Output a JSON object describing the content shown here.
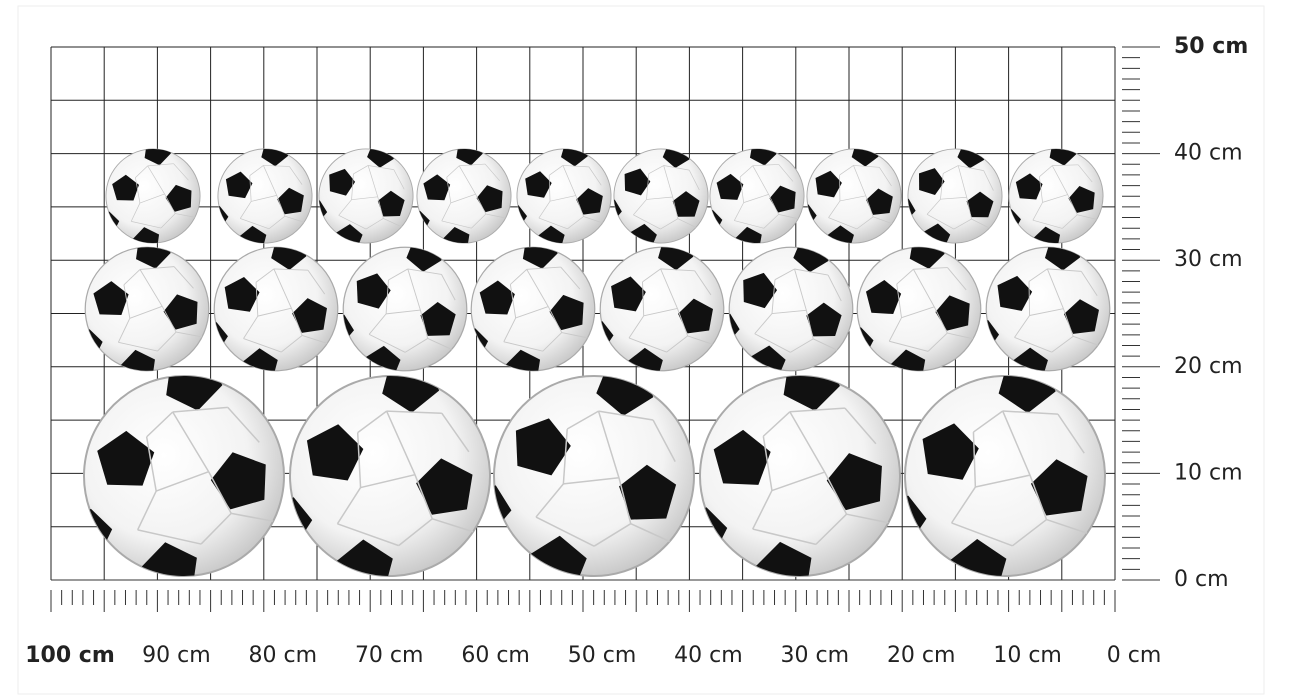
{
  "rulers": {
    "horizontal": [
      "100 cm",
      "90 cm",
      "80 cm",
      "70 cm",
      "60 cm",
      "50 cm",
      "40 cm",
      "30 cm",
      "20 cm",
      "10 cm",
      "0 cm"
    ],
    "vertical": [
      "50 cm",
      "40 cm",
      "30 cm",
      "20 cm",
      "10 cm",
      "0 cm"
    ]
  }
}
